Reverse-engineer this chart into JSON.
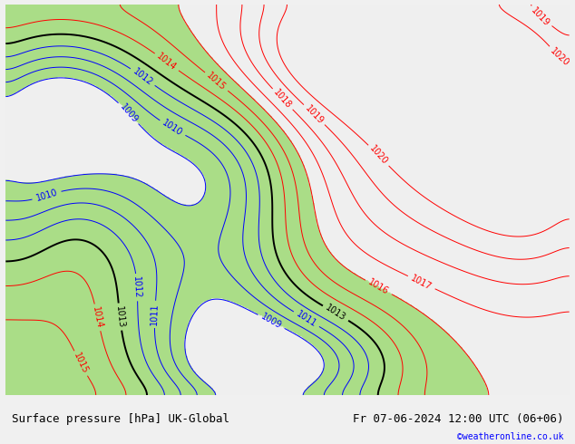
{
  "title_left": "Surface pressure [hPa] UK-Global",
  "title_right": "Fr 07-06-2024 12:00 UTC (06+06)",
  "copyright": "©weatheronline.co.uk",
  "bg_color": "#f0f0f0",
  "green_color_rgb": [
    0.67,
    0.87,
    0.53
  ],
  "gray_color_rgb": [
    0.94,
    0.94,
    0.94
  ],
  "label_fontsize": 7,
  "title_fontsize": 9,
  "red_levels": [
    1014,
    1015,
    1016,
    1017,
    1018,
    1019,
    1020
  ],
  "blue_levels": [
    1009,
    1010,
    1011,
    1012
  ],
  "black_levels": [
    1013
  ],
  "green_low": 1009,
  "green_high": 1016
}
